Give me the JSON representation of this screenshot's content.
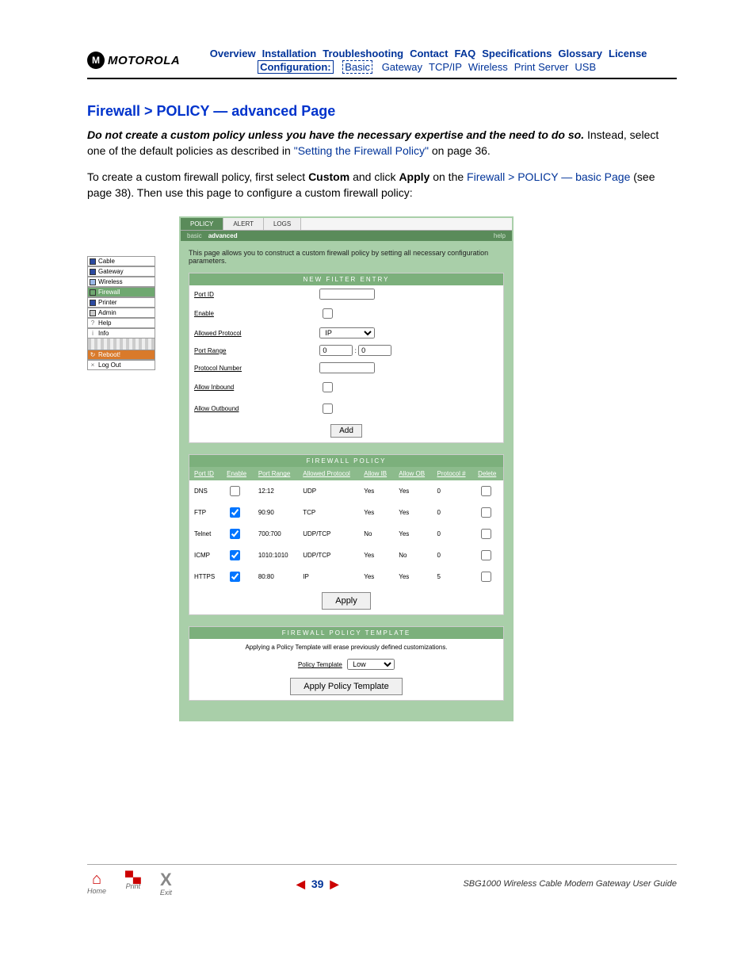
{
  "header": {
    "brand": "MOTOROLA",
    "logo_letter": "M",
    "nav1": [
      "Overview",
      "Installation",
      "Troubleshooting",
      "Contact",
      "FAQ",
      "Specifications",
      "Glossary",
      "License"
    ],
    "config_label": "Configuration:",
    "nav2_basic": "Basic",
    "nav2_rest": [
      "Gateway",
      "TCP/IP",
      "Wireless",
      "Print Server",
      "USB"
    ]
  },
  "title": "Firewall > POLICY — advanced Page",
  "para1_a": "Do not create a custom policy unless you have the necessary expertise and the need to do so.",
  "para1_b": " Instead, select one of the default policies as described in ",
  "para1_link": "\"Setting the Firewall Policy\"",
  "para1_c": " on page 36.",
  "para2_a": "To create a custom firewall policy, first select ",
  "para2_b1": "Custom",
  "para2_c": " and click ",
  "para2_b2": "Apply",
  "para2_d": " on the ",
  "para2_link": "Firewall > POLICY — basic Page",
  "para2_e": " (see page 38). Then use this page to configure a custom firewall policy:",
  "sidenav": {
    "items": [
      {
        "label": "Cable",
        "color": "#2b4aa0"
      },
      {
        "label": "Gateway",
        "color": "#2b4aa0"
      },
      {
        "label": "Wireless",
        "color": "#9bb8e8"
      },
      {
        "label": "Firewall",
        "color": "#6fa870",
        "selected": true
      },
      {
        "label": "Printer",
        "color": "#2b4aa0"
      },
      {
        "label": "Admin",
        "color": "#ccc"
      },
      {
        "label": "Help",
        "color": "#ccc",
        "symbol": "?"
      },
      {
        "label": "Info",
        "color": "#ccc",
        "symbol": "i"
      }
    ],
    "reboot": "Reboot!",
    "logout": "Log Out"
  },
  "win": {
    "tabs": [
      "POLICY",
      "ALERT",
      "LOGS"
    ],
    "subtabs_left": [
      "basic",
      "advanced"
    ],
    "subtab_active": "advanced",
    "help": "help",
    "desc": "This page allows you to construct a custom firewall policy by setting all necessary configuration parameters.",
    "new_filter": {
      "header": "NEW FILTER ENTRY",
      "rows": [
        {
          "label": "Port ID",
          "type": "text"
        },
        {
          "label": "Enable",
          "type": "checkbox"
        },
        {
          "label": "Allowed Protocol",
          "type": "select",
          "value": "IP"
        },
        {
          "label": "Port Range",
          "type": "range",
          "v1": "0",
          "v2": "0"
        },
        {
          "label": "Protocol Number",
          "type": "text"
        },
        {
          "label": "Allow Inbound",
          "type": "checkbox"
        },
        {
          "label": "Allow Outbound",
          "type": "checkbox"
        }
      ],
      "add_btn": "Add"
    },
    "policy": {
      "header": "FIREWALL POLICY",
      "cols": [
        "Port ID",
        "Enable",
        "Port Range",
        "Allowed Protocol",
        "Allow IB",
        "Allow OB",
        "Protocol #",
        "Delete"
      ],
      "rows": [
        {
          "id": "DNS",
          "en": false,
          "range": "12:12",
          "proto": "UDP",
          "ib": "Yes",
          "ob": "Yes",
          "pn": "0"
        },
        {
          "id": "FTP",
          "en": true,
          "range": "90:90",
          "proto": "TCP",
          "ib": "Yes",
          "ob": "Yes",
          "pn": "0"
        },
        {
          "id": "Telnet",
          "en": true,
          "range": "700:700",
          "proto": "UDP/TCP",
          "ib": "No",
          "ob": "Yes",
          "pn": "0"
        },
        {
          "id": "ICMP",
          "en": true,
          "range": "1010:1010",
          "proto": "UDP/TCP",
          "ib": "Yes",
          "ob": "No",
          "pn": "0"
        },
        {
          "id": "HTTPS",
          "en": true,
          "range": "80:80",
          "proto": "IP",
          "ib": "Yes",
          "ob": "Yes",
          "pn": "5"
        }
      ],
      "apply_btn": "Apply"
    },
    "template": {
      "header": "FIREWALL POLICY TEMPLATE",
      "note": "Applying a Policy Template will erase previously defined customizations.",
      "sel_label": "Policy Template",
      "sel_value": "Low",
      "apply_btn": "Apply Policy Template"
    }
  },
  "footer": {
    "home": "Home",
    "print": "Print",
    "exit": "Exit",
    "page": "39",
    "doc": "SBG1000 Wireless Cable Modem Gateway User Guide"
  },
  "colors": {
    "link": "#003399",
    "green_light": "#a9cfa9",
    "green_mid": "#7cb07c",
    "green_dark": "#5a8b5a",
    "red": "#c00"
  }
}
